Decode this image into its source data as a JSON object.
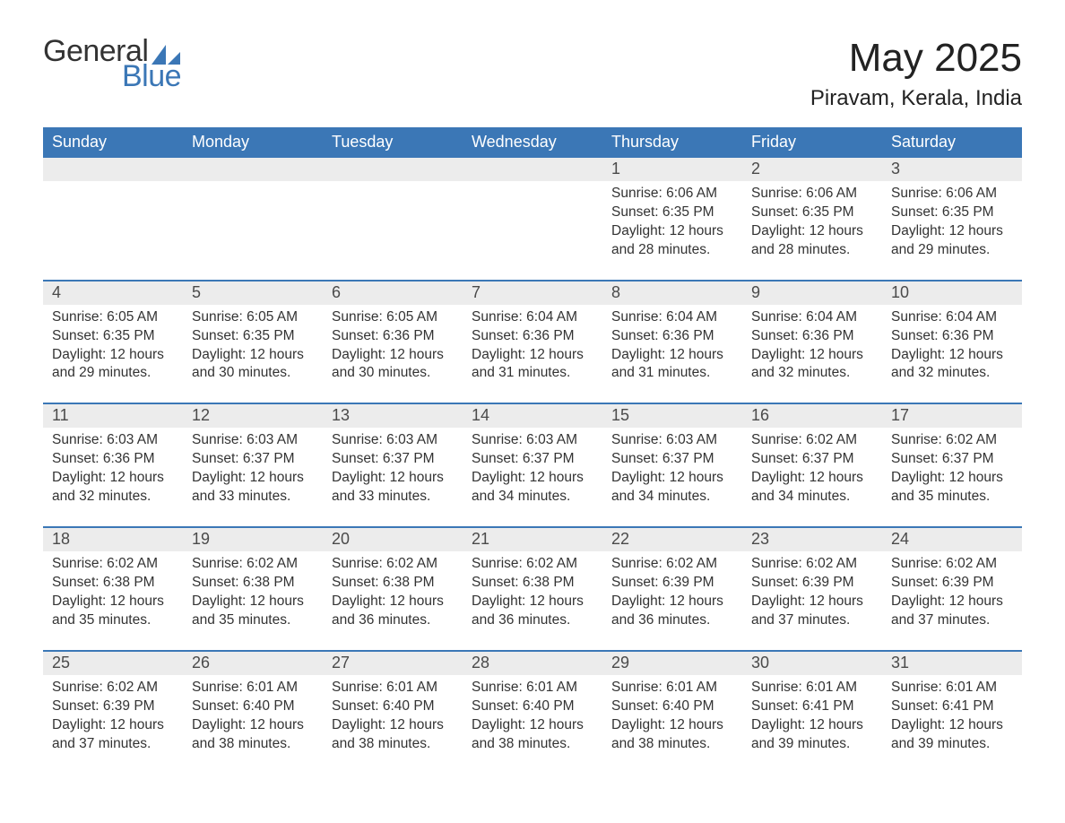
{
  "logo": {
    "word1": "General",
    "word2": "Blue",
    "text_color": "#333333",
    "accent_color": "#3b77b6"
  },
  "title": "May 2025",
  "location": "Piravam, Kerala, India",
  "colors": {
    "header_bg": "#3b77b6",
    "header_text": "#ffffff",
    "daynum_bg": "#ececec",
    "row_divider": "#3b77b6",
    "body_text": "#333333",
    "page_bg": "#ffffff"
  },
  "weekdays": [
    "Sunday",
    "Monday",
    "Tuesday",
    "Wednesday",
    "Thursday",
    "Friday",
    "Saturday"
  ],
  "weeks": [
    [
      {
        "n": "",
        "sr": "",
        "ss": "",
        "dl": ""
      },
      {
        "n": "",
        "sr": "",
        "ss": "",
        "dl": ""
      },
      {
        "n": "",
        "sr": "",
        "ss": "",
        "dl": ""
      },
      {
        "n": "",
        "sr": "",
        "ss": "",
        "dl": ""
      },
      {
        "n": "1",
        "sr": "Sunrise: 6:06 AM",
        "ss": "Sunset: 6:35 PM",
        "dl": "Daylight: 12 hours and 28 minutes."
      },
      {
        "n": "2",
        "sr": "Sunrise: 6:06 AM",
        "ss": "Sunset: 6:35 PM",
        "dl": "Daylight: 12 hours and 28 minutes."
      },
      {
        "n": "3",
        "sr": "Sunrise: 6:06 AM",
        "ss": "Sunset: 6:35 PM",
        "dl": "Daylight: 12 hours and 29 minutes."
      }
    ],
    [
      {
        "n": "4",
        "sr": "Sunrise: 6:05 AM",
        "ss": "Sunset: 6:35 PM",
        "dl": "Daylight: 12 hours and 29 minutes."
      },
      {
        "n": "5",
        "sr": "Sunrise: 6:05 AM",
        "ss": "Sunset: 6:35 PM",
        "dl": "Daylight: 12 hours and 30 minutes."
      },
      {
        "n": "6",
        "sr": "Sunrise: 6:05 AM",
        "ss": "Sunset: 6:36 PM",
        "dl": "Daylight: 12 hours and 30 minutes."
      },
      {
        "n": "7",
        "sr": "Sunrise: 6:04 AM",
        "ss": "Sunset: 6:36 PM",
        "dl": "Daylight: 12 hours and 31 minutes."
      },
      {
        "n": "8",
        "sr": "Sunrise: 6:04 AM",
        "ss": "Sunset: 6:36 PM",
        "dl": "Daylight: 12 hours and 31 minutes."
      },
      {
        "n": "9",
        "sr": "Sunrise: 6:04 AM",
        "ss": "Sunset: 6:36 PM",
        "dl": "Daylight: 12 hours and 32 minutes."
      },
      {
        "n": "10",
        "sr": "Sunrise: 6:04 AM",
        "ss": "Sunset: 6:36 PM",
        "dl": "Daylight: 12 hours and 32 minutes."
      }
    ],
    [
      {
        "n": "11",
        "sr": "Sunrise: 6:03 AM",
        "ss": "Sunset: 6:36 PM",
        "dl": "Daylight: 12 hours and 32 minutes."
      },
      {
        "n": "12",
        "sr": "Sunrise: 6:03 AM",
        "ss": "Sunset: 6:37 PM",
        "dl": "Daylight: 12 hours and 33 minutes."
      },
      {
        "n": "13",
        "sr": "Sunrise: 6:03 AM",
        "ss": "Sunset: 6:37 PM",
        "dl": "Daylight: 12 hours and 33 minutes."
      },
      {
        "n": "14",
        "sr": "Sunrise: 6:03 AM",
        "ss": "Sunset: 6:37 PM",
        "dl": "Daylight: 12 hours and 34 minutes."
      },
      {
        "n": "15",
        "sr": "Sunrise: 6:03 AM",
        "ss": "Sunset: 6:37 PM",
        "dl": "Daylight: 12 hours and 34 minutes."
      },
      {
        "n": "16",
        "sr": "Sunrise: 6:02 AM",
        "ss": "Sunset: 6:37 PM",
        "dl": "Daylight: 12 hours and 34 minutes."
      },
      {
        "n": "17",
        "sr": "Sunrise: 6:02 AM",
        "ss": "Sunset: 6:37 PM",
        "dl": "Daylight: 12 hours and 35 minutes."
      }
    ],
    [
      {
        "n": "18",
        "sr": "Sunrise: 6:02 AM",
        "ss": "Sunset: 6:38 PM",
        "dl": "Daylight: 12 hours and 35 minutes."
      },
      {
        "n": "19",
        "sr": "Sunrise: 6:02 AM",
        "ss": "Sunset: 6:38 PM",
        "dl": "Daylight: 12 hours and 35 minutes."
      },
      {
        "n": "20",
        "sr": "Sunrise: 6:02 AM",
        "ss": "Sunset: 6:38 PM",
        "dl": "Daylight: 12 hours and 36 minutes."
      },
      {
        "n": "21",
        "sr": "Sunrise: 6:02 AM",
        "ss": "Sunset: 6:38 PM",
        "dl": "Daylight: 12 hours and 36 minutes."
      },
      {
        "n": "22",
        "sr": "Sunrise: 6:02 AM",
        "ss": "Sunset: 6:39 PM",
        "dl": "Daylight: 12 hours and 36 minutes."
      },
      {
        "n": "23",
        "sr": "Sunrise: 6:02 AM",
        "ss": "Sunset: 6:39 PM",
        "dl": "Daylight: 12 hours and 37 minutes."
      },
      {
        "n": "24",
        "sr": "Sunrise: 6:02 AM",
        "ss": "Sunset: 6:39 PM",
        "dl": "Daylight: 12 hours and 37 minutes."
      }
    ],
    [
      {
        "n": "25",
        "sr": "Sunrise: 6:02 AM",
        "ss": "Sunset: 6:39 PM",
        "dl": "Daylight: 12 hours and 37 minutes."
      },
      {
        "n": "26",
        "sr": "Sunrise: 6:01 AM",
        "ss": "Sunset: 6:40 PM",
        "dl": "Daylight: 12 hours and 38 minutes."
      },
      {
        "n": "27",
        "sr": "Sunrise: 6:01 AM",
        "ss": "Sunset: 6:40 PM",
        "dl": "Daylight: 12 hours and 38 minutes."
      },
      {
        "n": "28",
        "sr": "Sunrise: 6:01 AM",
        "ss": "Sunset: 6:40 PM",
        "dl": "Daylight: 12 hours and 38 minutes."
      },
      {
        "n": "29",
        "sr": "Sunrise: 6:01 AM",
        "ss": "Sunset: 6:40 PM",
        "dl": "Daylight: 12 hours and 38 minutes."
      },
      {
        "n": "30",
        "sr": "Sunrise: 6:01 AM",
        "ss": "Sunset: 6:41 PM",
        "dl": "Daylight: 12 hours and 39 minutes."
      },
      {
        "n": "31",
        "sr": "Sunrise: 6:01 AM",
        "ss": "Sunset: 6:41 PM",
        "dl": "Daylight: 12 hours and 39 minutes."
      }
    ]
  ]
}
